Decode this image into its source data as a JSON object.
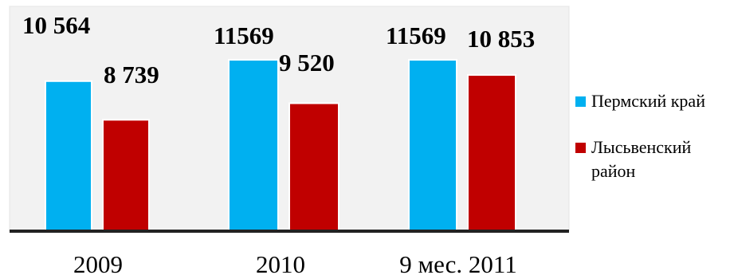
{
  "chart_data": {
    "type": "bar",
    "categories": [
      "2009",
      "2010",
      "9 мес. 2011"
    ],
    "series": [
      {
        "name": "Пермский край",
        "values": [
          10564,
          11569,
          11569
        ],
        "labels": [
          "10 564",
          "11569",
          "11569"
        ],
        "color": "#00b0f0"
      },
      {
        "name": "Лысьвенский район",
        "values": [
          8739,
          9520,
          10853
        ],
        "labels": [
          "8 739",
          "9 520",
          "10 853"
        ],
        "color": "#c00000"
      }
    ],
    "plot_background": "#f2f2f2",
    "grid": false,
    "legend_position": "right"
  }
}
